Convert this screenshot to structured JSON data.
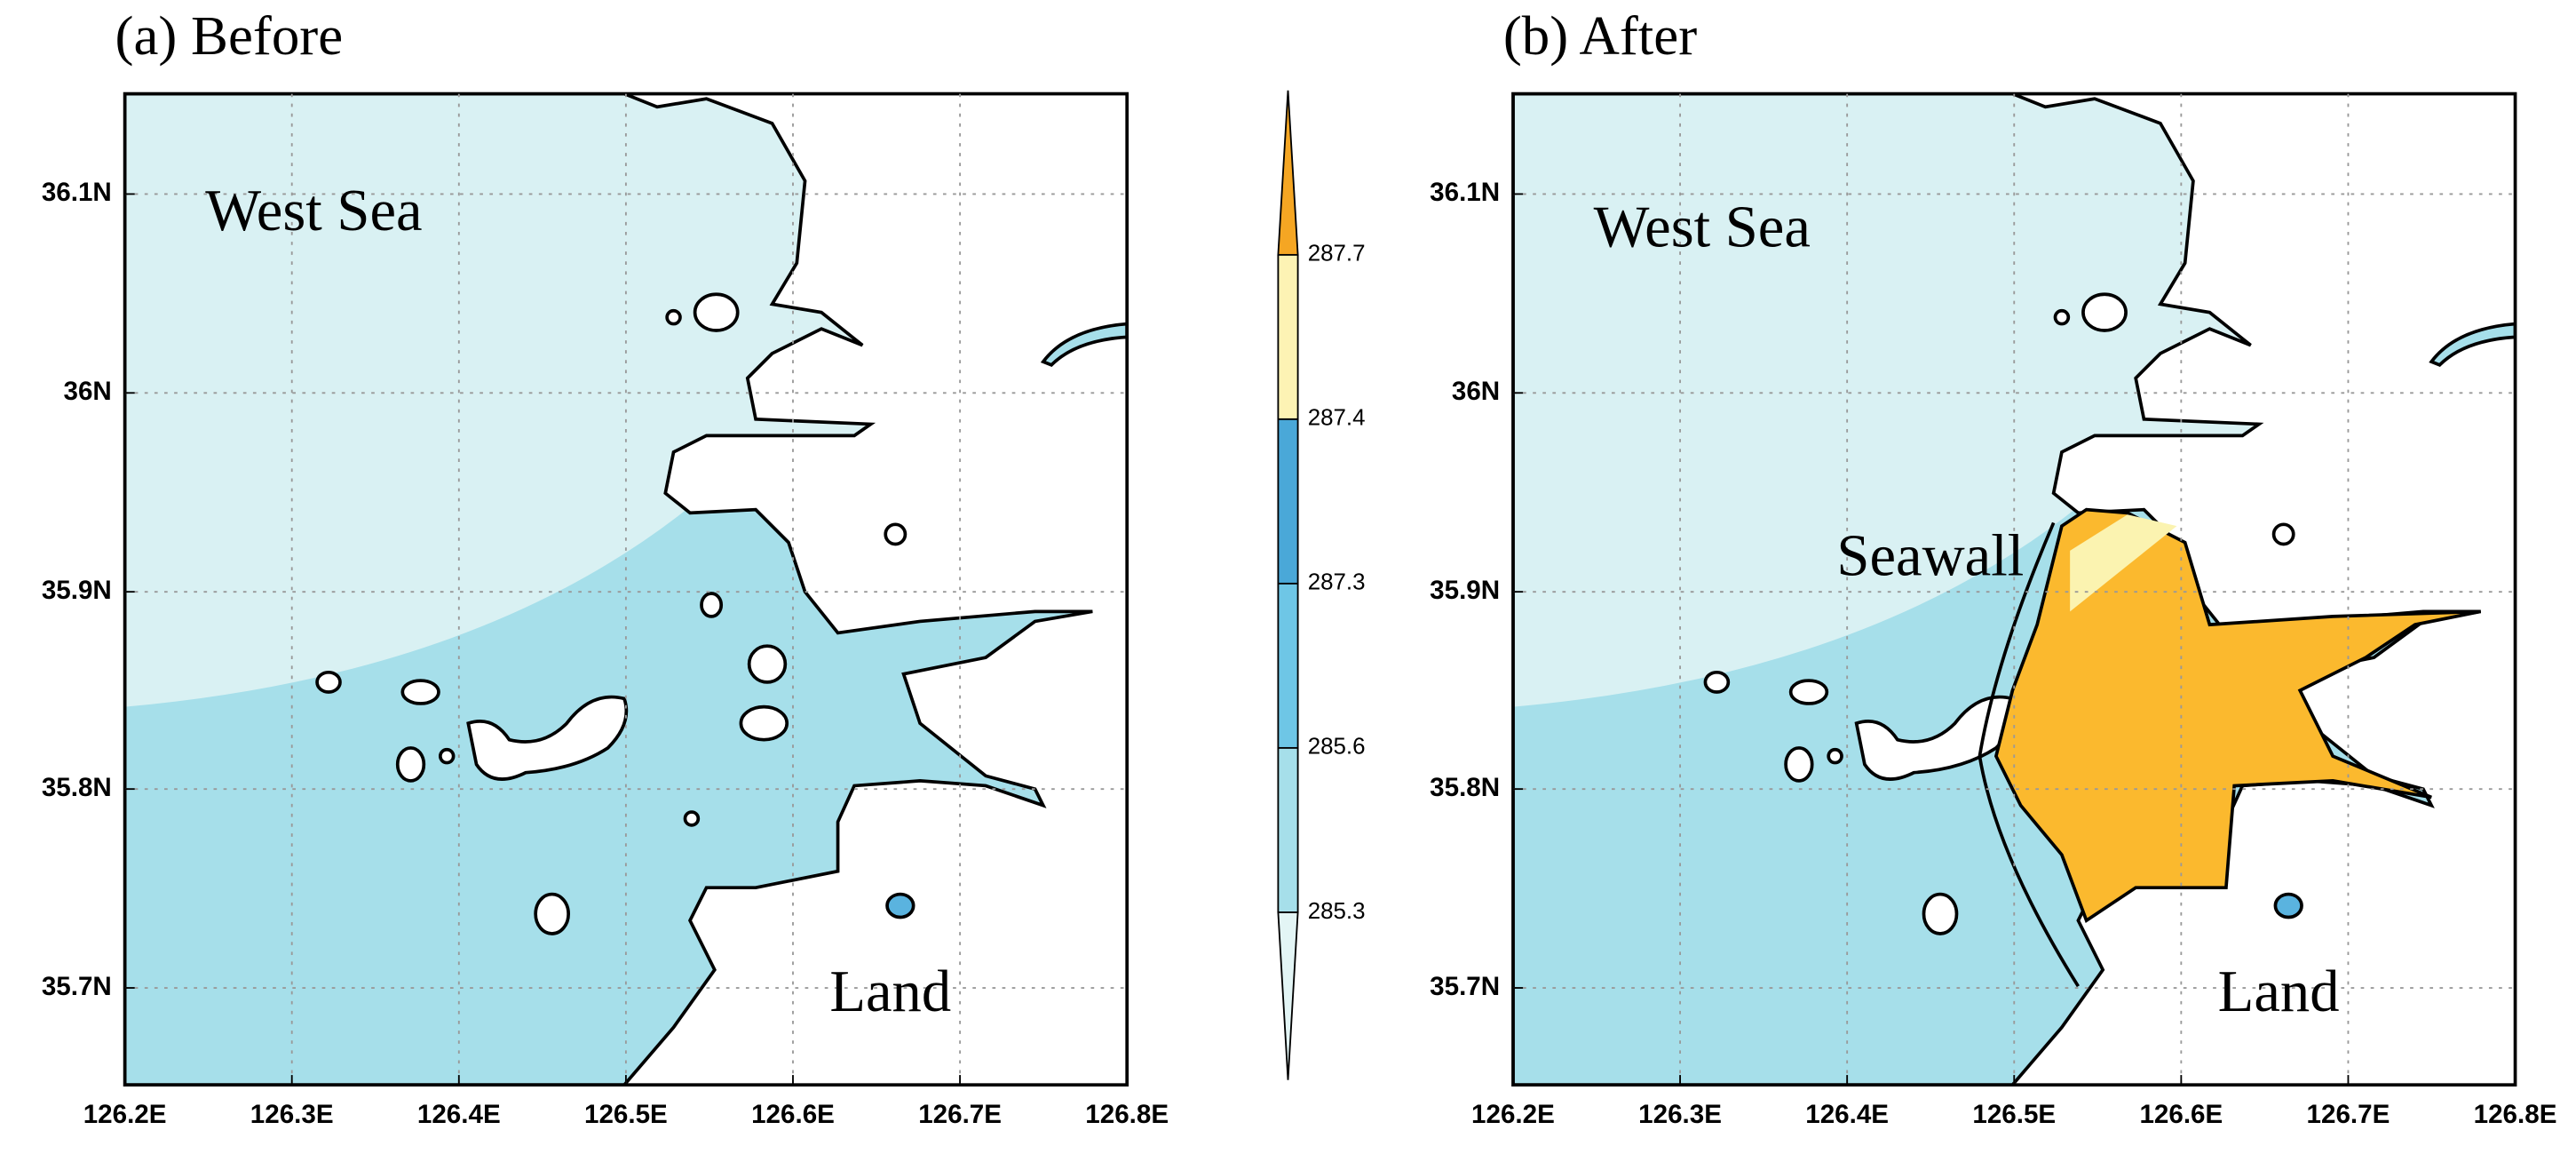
{
  "panels": [
    {
      "title": "(a) Before",
      "labels": [
        "West Sea",
        "Land"
      ]
    },
    {
      "title": "(b) After",
      "labels": [
        "West Sea",
        "Seawall",
        "Land"
      ]
    }
  ],
  "x_ticks": [
    "126.2E",
    "126.3E",
    "126.4E",
    "126.5E",
    "126.6E",
    "126.7E",
    "126.8E"
  ],
  "y_ticks": [
    "36.1N",
    "36N",
    "35.9N",
    "35.8N",
    "35.7N"
  ],
  "colorbar": {
    "levels": [
      "287.7",
      "287.4",
      "287.3",
      "285.6",
      "285.3"
    ]
  }
}
